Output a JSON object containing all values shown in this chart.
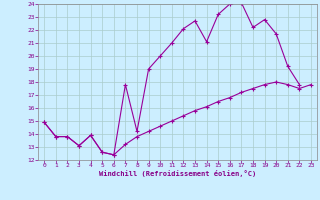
{
  "xlabel": "Windchill (Refroidissement éolien,°C)",
  "line_color": "#990099",
  "bg_color": "#cceeff",
  "grid_color": "#aacccc",
  "line1_x": [
    0,
    1,
    2,
    3,
    4,
    5,
    6,
    7,
    8,
    9,
    10,
    11,
    12,
    13,
    14,
    15,
    16,
    17,
    18,
    19,
    20,
    21,
    22
  ],
  "line1_y": [
    14.9,
    13.8,
    13.8,
    13.1,
    13.9,
    12.6,
    12.4,
    17.8,
    14.2,
    19.0,
    20.0,
    21.0,
    22.1,
    22.7,
    21.1,
    23.2,
    24.0,
    24.1,
    22.2,
    22.8,
    21.7,
    19.2,
    17.8
  ],
  "line2_x": [
    0,
    1,
    2,
    3,
    4,
    5,
    6,
    7,
    8,
    9,
    10,
    11,
    12,
    13,
    14,
    15,
    16,
    17,
    18,
    19,
    20,
    21,
    22,
    23
  ],
  "line2_y": [
    14.9,
    13.8,
    13.8,
    13.1,
    13.9,
    12.6,
    12.4,
    13.2,
    13.8,
    14.2,
    14.6,
    15.0,
    15.4,
    15.8,
    16.1,
    16.5,
    16.8,
    17.2,
    17.5,
    17.8,
    18.0,
    17.8,
    17.5,
    17.8
  ],
  "xlim": [
    -0.5,
    23.5
  ],
  "ylim": [
    12,
    24
  ],
  "yticks": [
    12,
    13,
    14,
    15,
    16,
    17,
    18,
    19,
    20,
    21,
    22,
    23,
    24
  ],
  "xticks": [
    0,
    1,
    2,
    3,
    4,
    5,
    6,
    7,
    8,
    9,
    10,
    11,
    12,
    13,
    14,
    15,
    16,
    17,
    18,
    19,
    20,
    21,
    22,
    23
  ]
}
